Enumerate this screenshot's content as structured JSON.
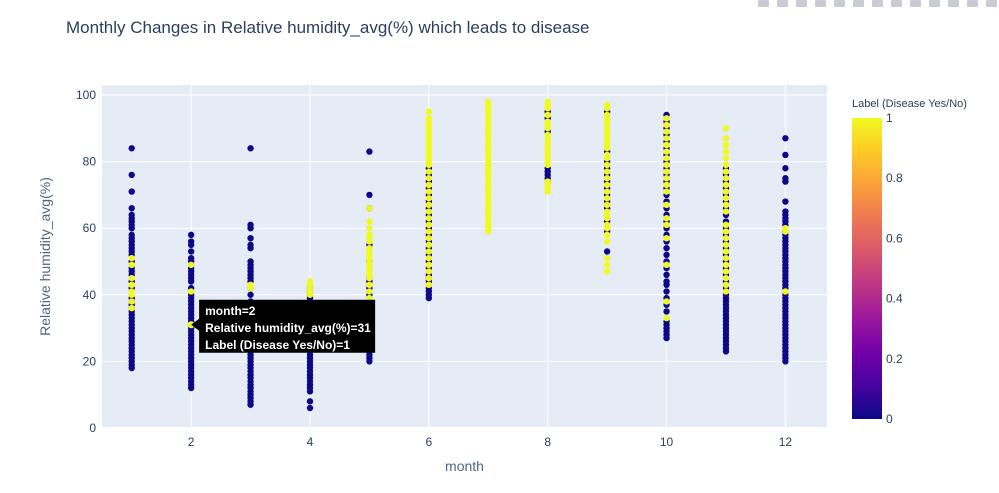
{
  "chart_data": {
    "type": "scatter",
    "title": "Monthly Changes in Relative humidity_avg(%) which leads to disease",
    "xlabel": "month",
    "ylabel": "Relative humidity_avg(%)",
    "xlim": [
      0.5,
      12.7
    ],
    "ylim": [
      0,
      103
    ],
    "xticks": [
      2,
      4,
      6,
      8,
      10,
      12
    ],
    "yticks": [
      0,
      20,
      40,
      60,
      80,
      100
    ],
    "grid": true,
    "colors": {
      "class_0": "#0d0887",
      "class_1": "#f0f921",
      "plot_bg": "#e5ecf6",
      "grid": "#ffffff"
    },
    "colorbar": {
      "title": "Label (Disease Yes/No)",
      "ticks": [
        "0",
        "0.2",
        "0.4",
        "0.6",
        "0.8",
        "1"
      ],
      "colorscale": [
        "#0d0887",
        "#46039f",
        "#7201a8",
        "#9c179e",
        "#bd3786",
        "#d8576b",
        "#ed7953",
        "#fb9f3a",
        "#fdca26",
        "#f0f921"
      ]
    },
    "points": [
      {
        "month": 1,
        "label": 0,
        "values": [
          18,
          19,
          20,
          21,
          22,
          23,
          24,
          25,
          26,
          27,
          28,
          29,
          30,
          31,
          32,
          33,
          34,
          35,
          36,
          37,
          38,
          39,
          42,
          44,
          46,
          47,
          48,
          50,
          52,
          53,
          54,
          55,
          56,
          57,
          58,
          60,
          61,
          62,
          63,
          64,
          66,
          71,
          76,
          84
        ]
      },
      {
        "month": 1,
        "label": 1,
        "values": [
          36,
          38,
          40,
          41,
          43,
          45,
          49,
          51
        ]
      },
      {
        "month": 2,
        "label": 0,
        "values": [
          12,
          13,
          14,
          15,
          16,
          17,
          18,
          19,
          20,
          21,
          22,
          23,
          24,
          25,
          26,
          27,
          28,
          29,
          30,
          32,
          33,
          34,
          35,
          36,
          37,
          38,
          39,
          40,
          42,
          44,
          45,
          46,
          47,
          48,
          50,
          51,
          53,
          55,
          56,
          58
        ]
      },
      {
        "month": 2,
        "label": 1,
        "values": [
          31,
          41,
          49
        ]
      },
      {
        "month": 3,
        "label": 0,
        "values": [
          7,
          8,
          9,
          10,
          11,
          12,
          13,
          14,
          15,
          16,
          17,
          18,
          19,
          20,
          21,
          22,
          23,
          24,
          25,
          26,
          27,
          28,
          29,
          30,
          31,
          32,
          33,
          34,
          35,
          36,
          37,
          38,
          40,
          42,
          44,
          45,
          46,
          47,
          48,
          49,
          50,
          54,
          55,
          57,
          60,
          61,
          84
        ]
      },
      {
        "month": 3,
        "label": 1,
        "values": [
          42,
          43
        ]
      },
      {
        "month": 4,
        "label": 0,
        "values": [
          6,
          8,
          11,
          12,
          13,
          14,
          15,
          16,
          17,
          18,
          19,
          20,
          21,
          22,
          23,
          24,
          25,
          26,
          27,
          28,
          29,
          30,
          31,
          32,
          33,
          34,
          35,
          36,
          37,
          38,
          39,
          40,
          41,
          42
        ]
      },
      {
        "month": 4,
        "label": 1,
        "values": [
          40,
          41,
          42,
          43,
          44
        ]
      },
      {
        "month": 5,
        "label": 0,
        "values": [
          20,
          21,
          22,
          23,
          24,
          25,
          26,
          27,
          28,
          29,
          30,
          31,
          32,
          33,
          34,
          35,
          36,
          38,
          40,
          42,
          44,
          45,
          50,
          55,
          66,
          70,
          83
        ]
      },
      {
        "month": 5,
        "label": 1,
        "values": [
          37,
          39,
          41,
          43,
          45,
          46,
          47,
          48,
          49,
          50,
          51,
          52,
          53,
          54,
          56,
          57,
          58,
          60,
          62,
          66
        ]
      },
      {
        "month": 6,
        "label": 0,
        "values": [
          39,
          40,
          41,
          42,
          44,
          45,
          46,
          48,
          50,
          52,
          54,
          56,
          58,
          60,
          62,
          64,
          66,
          68,
          70,
          72,
          74,
          76,
          78
        ]
      },
      {
        "month": 6,
        "label": 1,
        "values": [
          43,
          45,
          47,
          49,
          51,
          53,
          55,
          57,
          59,
          61,
          63,
          65,
          67,
          69,
          71,
          73,
          75,
          77,
          79,
          80,
          81,
          82,
          83,
          84,
          85,
          86,
          87,
          88,
          89,
          90,
          91,
          92,
          93,
          95
        ]
      },
      {
        "month": 7,
        "label": 1,
        "values": [
          59,
          60,
          61,
          62,
          63,
          64,
          65,
          66,
          67,
          68,
          69,
          70,
          71,
          72,
          73,
          74,
          75,
          76,
          77,
          78,
          79,
          80,
          81,
          82,
          83,
          84,
          85,
          86,
          87,
          88,
          89,
          90,
          91,
          92,
          93,
          94,
          95,
          96,
          97,
          98
        ]
      },
      {
        "month": 8,
        "label": 0,
        "values": [
          74,
          75,
          76,
          77,
          78,
          89,
          93,
          95
        ]
      },
      {
        "month": 8,
        "label": 1,
        "values": [
          71,
          72,
          73,
          74,
          79,
          80,
          81,
          82,
          83,
          84,
          85,
          86,
          87,
          88,
          90,
          91,
          92,
          94,
          96,
          97,
          98
        ]
      },
      {
        "month": 9,
        "label": 0,
        "values": [
          53,
          59,
          62,
          66,
          68,
          70,
          72,
          74,
          76,
          78,
          80,
          83,
          95
        ]
      },
      {
        "month": 9,
        "label": 1,
        "values": [
          47,
          49,
          51,
          56,
          58,
          60,
          61,
          63,
          64,
          65,
          67,
          69,
          71,
          73,
          75,
          77,
          79,
          81,
          82,
          84,
          85,
          86,
          87,
          88,
          89,
          90,
          91,
          92,
          93,
          94,
          96,
          97
        ]
      },
      {
        "month": 10,
        "label": 0,
        "values": [
          27,
          28,
          29,
          30,
          31,
          32,
          35,
          37,
          39,
          41,
          43,
          44,
          46,
          48,
          50,
          52,
          54,
          56,
          58,
          60,
          62,
          64,
          66,
          68,
          70,
          72,
          74,
          76,
          78,
          80,
          82,
          84,
          86,
          88,
          90,
          92,
          94
        ]
      },
      {
        "month": 10,
        "label": 1,
        "values": [
          33,
          38,
          49,
          57,
          61,
          63,
          67,
          71,
          73,
          75,
          77,
          79,
          81,
          83,
          85,
          87,
          89,
          91,
          93
        ]
      },
      {
        "month": 11,
        "label": 0,
        "values": [
          23,
          24,
          25,
          26,
          27,
          28,
          29,
          30,
          31,
          32,
          33,
          34,
          35,
          36,
          37,
          38,
          39,
          40,
          42,
          44,
          46,
          48,
          50,
          52,
          54,
          56,
          58,
          60,
          62,
          64,
          66,
          68,
          70,
          72,
          74,
          76,
          78
        ]
      },
      {
        "month": 11,
        "label": 1,
        "values": [
          41,
          43,
          45,
          47,
          49,
          51,
          53,
          55,
          57,
          59,
          61,
          65,
          67,
          69,
          71,
          73,
          75,
          77,
          79,
          81,
          83,
          85,
          87,
          90
        ]
      },
      {
        "month": 12,
        "label": 0,
        "values": [
          20,
          21,
          22,
          23,
          24,
          25,
          26,
          27,
          28,
          29,
          30,
          31,
          32,
          33,
          34,
          35,
          36,
          37,
          38,
          39,
          40,
          42,
          43,
          44,
          45,
          46,
          47,
          48,
          49,
          50,
          51,
          52,
          53,
          54,
          55,
          56,
          57,
          58,
          59,
          61,
          62,
          63,
          64,
          65,
          68,
          74,
          75,
          78,
          82,
          87
        ]
      },
      {
        "month": 12,
        "label": 1,
        "values": [
          41,
          59,
          60
        ]
      }
    ],
    "tooltip": {
      "month": 2,
      "value": 31,
      "lines": [
        "month=2",
        "Relative humidity_avg(%)=31",
        "Label (Disease Yes/No)=1"
      ]
    }
  }
}
